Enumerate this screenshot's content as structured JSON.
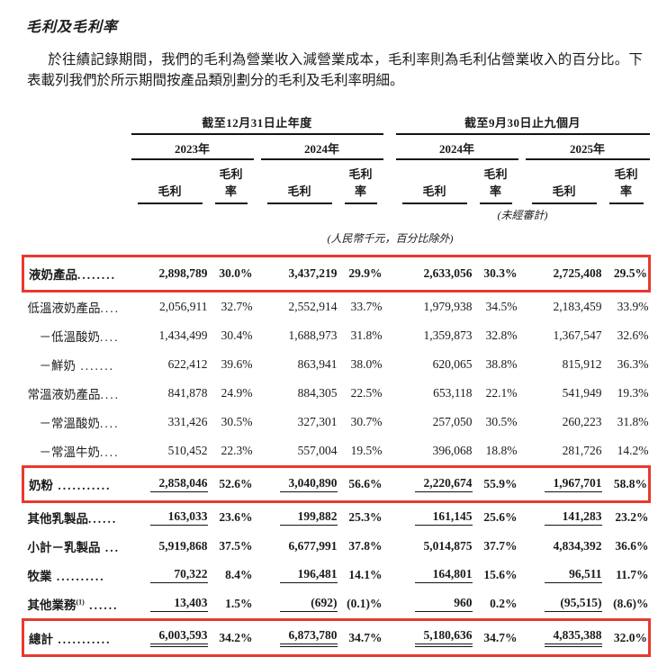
{
  "document": {
    "title": "毛利及毛利率",
    "paragraph": "於往績記錄期間，我們的毛利為營業收入減營業成本，毛利率則為毛利佔營業收入的百分比。下表載列我們於所示期間按產品類別劃分的毛利及毛利率明細。"
  },
  "highlight_color": "#e8392f",
  "table": {
    "period_groups": [
      {
        "label": "截至12月31日止年度"
      },
      {
        "label": "截至9月30日止九個月"
      }
    ],
    "years": [
      "2023年",
      "2024年",
      "2024年",
      "2025年"
    ],
    "col_gp": "毛利",
    "col_gpm": "毛利率",
    "unaudited_note": "(未經審計)",
    "units_note": "(人民幣千元，百分比除外)",
    "rows": [
      {
        "label": "液奶產品",
        "dots": "........",
        "bold": true,
        "boxed": true,
        "indent": false,
        "ul": "",
        "values": [
          "2,898,789",
          "30.0%",
          "3,437,219",
          "29.9%",
          "2,633,056",
          "30.3%",
          "2,725,408",
          "29.5%"
        ]
      },
      {
        "label": "低溫液奶產品",
        "dots": "....",
        "bold": false,
        "boxed": false,
        "indent": false,
        "ul": "",
        "values": [
          "2,056,911",
          "32.7%",
          "2,552,914",
          "33.7%",
          "1,979,938",
          "34.5%",
          "2,183,459",
          "33.9%"
        ]
      },
      {
        "label": "－低溫酸奶",
        "dots": "....",
        "bold": false,
        "boxed": false,
        "indent": true,
        "ul": "",
        "values": [
          "1,434,499",
          "30.4%",
          "1,688,973",
          "31.8%",
          "1,359,873",
          "32.8%",
          "1,367,547",
          "32.6%"
        ]
      },
      {
        "label": "－鮮奶",
        "dots": " .......",
        "bold": false,
        "boxed": false,
        "indent": true,
        "ul": "",
        "values": [
          "622,412",
          "39.6%",
          "863,941",
          "38.0%",
          "620,065",
          "38.8%",
          "815,912",
          "36.3%"
        ]
      },
      {
        "label": "常溫液奶產品",
        "dots": "....",
        "bold": false,
        "boxed": false,
        "indent": false,
        "ul": "",
        "values": [
          "841,878",
          "24.9%",
          "884,305",
          "22.5%",
          "653,118",
          "22.1%",
          "541,949",
          "19.3%"
        ]
      },
      {
        "label": "－常溫酸奶",
        "dots": "....",
        "bold": false,
        "boxed": false,
        "indent": true,
        "ul": "",
        "values": [
          "331,426",
          "30.5%",
          "327,301",
          "30.7%",
          "257,050",
          "30.5%",
          "260,223",
          "31.8%"
        ]
      },
      {
        "label": "－常溫牛奶",
        "dots": "....",
        "bold": false,
        "boxed": false,
        "indent": true,
        "ul": "",
        "values": [
          "510,452",
          "22.3%",
          "557,004",
          "19.5%",
          "396,068",
          "18.8%",
          "281,726",
          "14.2%"
        ]
      },
      {
        "label": "奶粉",
        "dots": " ...........",
        "bold": true,
        "boxed": true,
        "indent": false,
        "ul": "s",
        "values": [
          "2,858,046",
          "52.6%",
          "3,040,890",
          "56.6%",
          "2,220,674",
          "55.9%",
          "1,967,701",
          "58.8%"
        ]
      },
      {
        "label": "其他乳製品",
        "dots": "......",
        "bold": true,
        "boxed": false,
        "indent": false,
        "ul": "s",
        "values": [
          "163,033",
          "23.6%",
          "199,882",
          "25.3%",
          "161,145",
          "25.6%",
          "141,283",
          "23.2%"
        ]
      },
      {
        "label": "小計－乳製品",
        "dots": " ...",
        "bold": true,
        "boxed": false,
        "indent": false,
        "ul": "",
        "values": [
          "5,919,868",
          "37.5%",
          "6,677,991",
          "37.8%",
          "5,014,875",
          "37.7%",
          "4,834,392",
          "36.6%"
        ]
      },
      {
        "label": "牧業",
        "dots": " ..........",
        "bold": true,
        "boxed": false,
        "indent": false,
        "ul": "s",
        "values": [
          "70,322",
          "8.4%",
          "196,481",
          "14.1%",
          "164,801",
          "15.6%",
          "96,511",
          "11.7%"
        ]
      },
      {
        "label": "其他業務",
        "sup": "(1)",
        "dots": " ......",
        "bold": true,
        "boxed": false,
        "indent": false,
        "ul": "s",
        "values": [
          "13,403",
          "1.5%",
          "(692)",
          "(0.1)%",
          "960",
          "0.2%",
          "(95,515)",
          "(8.6)%"
        ]
      },
      {
        "label": "總計",
        "dots": " ...........",
        "bold": true,
        "boxed": true,
        "indent": false,
        "ul": "d",
        "values": [
          "6,003,593",
          "34.2%",
          "6,873,780",
          "34.7%",
          "5,180,636",
          "34.7%",
          "4,835,388",
          "32.0%"
        ]
      }
    ]
  }
}
